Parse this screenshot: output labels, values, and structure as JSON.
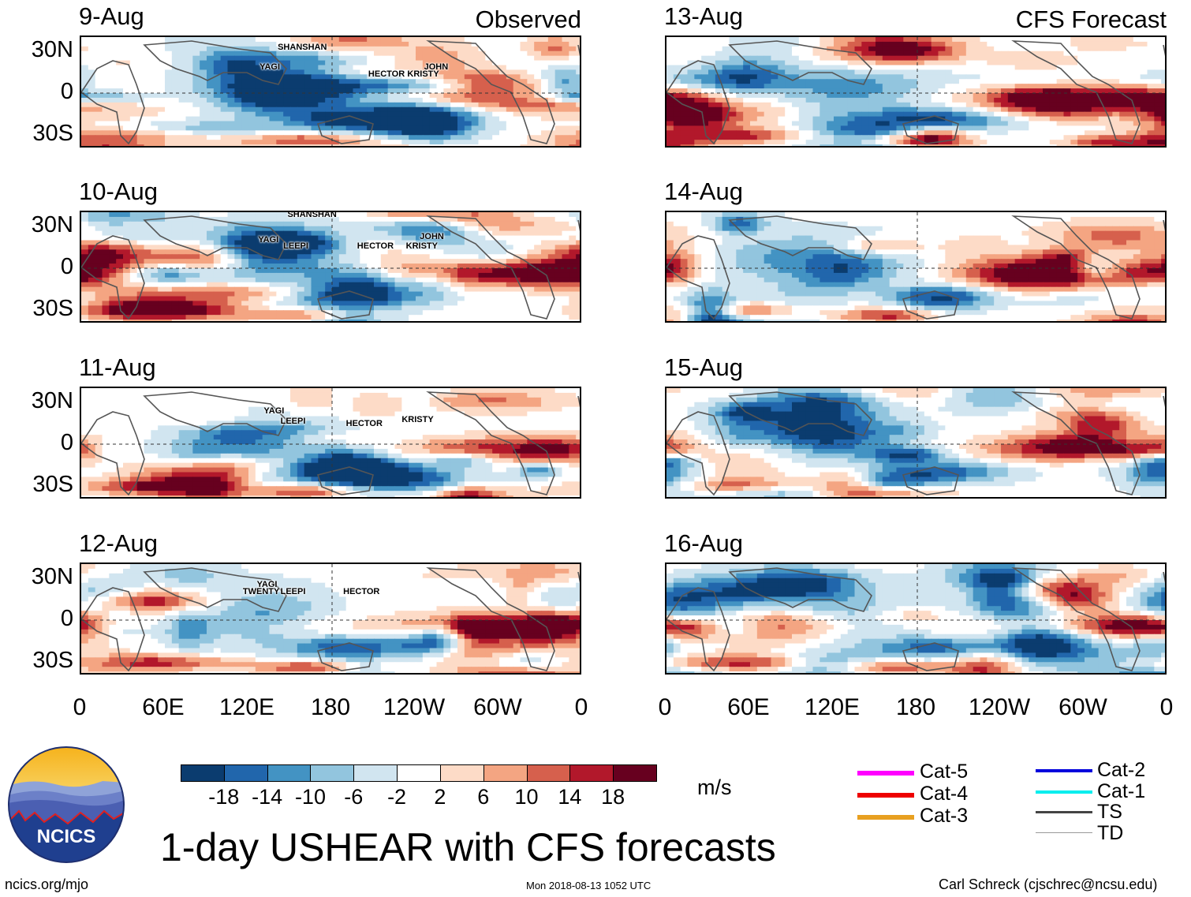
{
  "title": "1-day USHEAR with CFS forecasts",
  "observed_label": "Observed",
  "forecast_label": "CFS Forecast",
  "units": "m/s",
  "lat_labels": [
    "30N",
    "0",
    "30S"
  ],
  "lon_labels": [
    "0",
    "60E",
    "120E",
    "180",
    "120W",
    "60W",
    "0"
  ],
  "logo_text": "NCICS",
  "footer": {
    "website": "ncics.org/mjo",
    "timestamp": "Mon 2018-08-13 1052 UTC",
    "author": "Carl Schreck (cjschrec@ncsu.edu)"
  },
  "colorbar": {
    "colors": [
      "#0b3c6f",
      "#2166ac",
      "#4393c3",
      "#92c5de",
      "#d1e5f0",
      "#ffffff",
      "#fddbc7",
      "#f4a582",
      "#d6604d",
      "#b2182b",
      "#67001f"
    ],
    "ticks": [
      "-18",
      "-14",
      "-10",
      "-6",
      "-2",
      "2",
      "6",
      "10",
      "14",
      "18"
    ]
  },
  "legend": [
    {
      "label": "Cat-5",
      "color": "#ff00ff"
    },
    {
      "label": "Cat-4",
      "color": "#ee0000"
    },
    {
      "label": "Cat-3",
      "color": "#e8a020"
    },
    {
      "label": "Cat-2",
      "color": "#0000dd"
    },
    {
      "label": "Cat-1",
      "color": "#00eeee"
    },
    {
      "label": "TS",
      "color": "#444444"
    },
    {
      "label": "TD",
      "color": "#999999"
    }
  ],
  "chart_data": {
    "type": "heatmap",
    "variable": "1-day USHEAR (zonal vertical wind shear) anomaly",
    "units": "m/s",
    "contour_levels": [
      -18,
      -14,
      -10,
      -6,
      -2,
      2,
      6,
      10,
      14,
      18
    ],
    "lon_range": [
      0,
      360
    ],
    "lat_range": [
      -40,
      40
    ],
    "panels": [
      {
        "date": "9-Aug",
        "source": "Observed",
        "storms": [
          {
            "name": "SHANSHAN",
            "lon": 141,
            "lat": 32
          },
          {
            "name": "YAGI",
            "lon": 128,
            "lat": 18
          },
          {
            "name": "HECTOR",
            "lon": 206,
            "lat": 13
          },
          {
            "name": "KRISTY",
            "lon": 234,
            "lat": 13
          },
          {
            "name": "JOHN",
            "lon": 246,
            "lat": 18
          }
        ]
      },
      {
        "date": "10-Aug",
        "source": "Observed",
        "storms": [
          {
            "name": "SHANSHAN",
            "lon": 148,
            "lat": 38
          },
          {
            "name": "YAGI",
            "lon": 127,
            "lat": 20
          },
          {
            "name": "LEEPI",
            "lon": 145,
            "lat": 15
          },
          {
            "name": "HECTOR",
            "lon": 198,
            "lat": 15
          },
          {
            "name": "KRISTY",
            "lon": 233,
            "lat": 15
          },
          {
            "name": "JOHN",
            "lon": 243,
            "lat": 22
          }
        ]
      },
      {
        "date": "11-Aug",
        "source": "Observed",
        "storms": [
          {
            "name": "YAGI",
            "lon": 131,
            "lat": 23
          },
          {
            "name": "LEEPI",
            "lon": 143,
            "lat": 16
          },
          {
            "name": "HECTOR",
            "lon": 190,
            "lat": 14
          },
          {
            "name": "KRISTY",
            "lon": 230,
            "lat": 17
          }
        ]
      },
      {
        "date": "12-Aug",
        "source": "Observed",
        "storms": [
          {
            "name": "YAGI",
            "lon": 126,
            "lat": 25
          },
          {
            "name": "TWENTY",
            "lon": 116,
            "lat": 20
          },
          {
            "name": "LEEPI",
            "lon": 143,
            "lat": 20
          },
          {
            "name": "HECTOR",
            "lon": 188,
            "lat": 20
          }
        ]
      },
      {
        "date": "13-Aug",
        "source": "CFS Forecast",
        "storms": []
      },
      {
        "date": "14-Aug",
        "source": "CFS Forecast",
        "storms": []
      },
      {
        "date": "15-Aug",
        "source": "CFS Forecast",
        "storms": []
      },
      {
        "date": "16-Aug",
        "source": "CFS Forecast",
        "storms": []
      }
    ]
  }
}
